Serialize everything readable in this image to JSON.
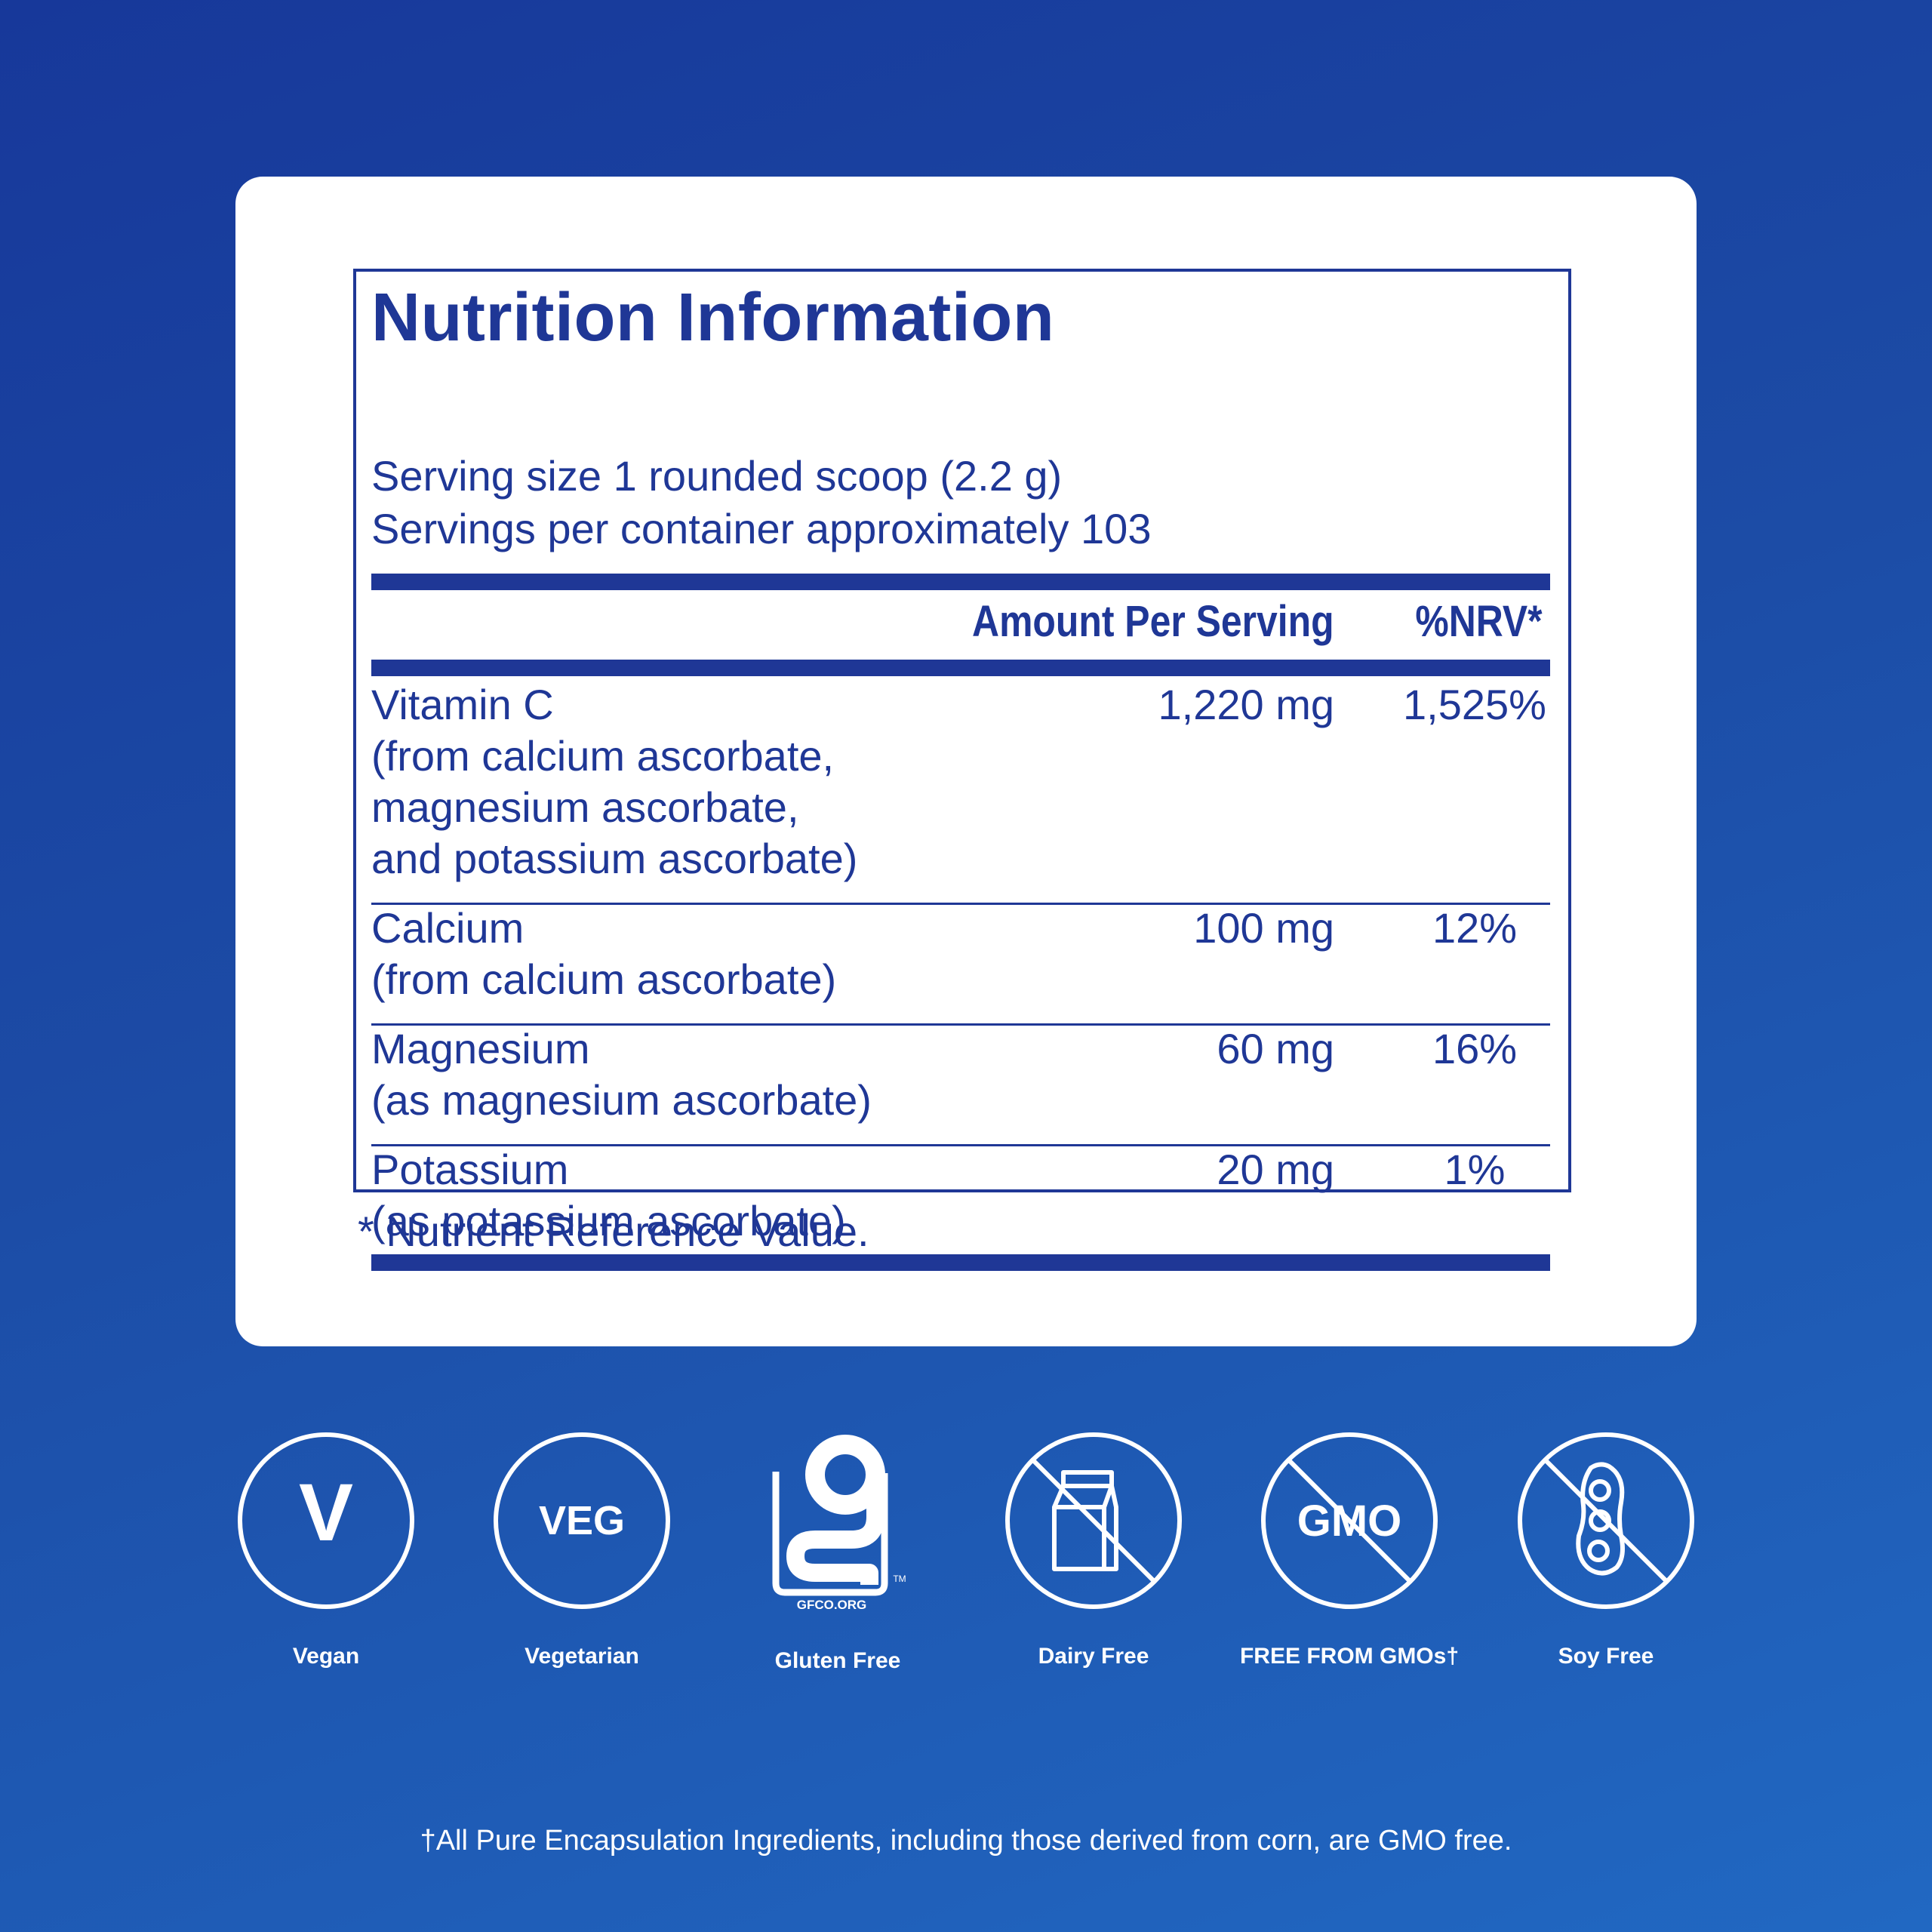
{
  "nutrition": {
    "title": "Nutrition Information",
    "serving_size": "Serving size  1 rounded scoop (2.2 g)",
    "servings_per_container": "Servings per container  approximately 103",
    "col_amount": "Amount Per Serving",
    "col_nrv": "%NRV*",
    "rows": [
      {
        "name": "Vitamin C",
        "detail": [
          "(from calcium ascorbate,",
          "magnesium ascorbate,",
          "and potassium ascorbate)"
        ],
        "amount": "1,220 mg",
        "nrv": "1,525%"
      },
      {
        "name": "Calcium",
        "detail": [
          "(from calcium ascorbate)"
        ],
        "amount": "100 mg",
        "nrv": "12%"
      },
      {
        "name": "Magnesium",
        "detail": [
          "(as magnesium ascorbate)"
        ],
        "amount": "60 mg",
        "nrv": "16%"
      },
      {
        "name": "Potassium",
        "detail": [
          "(as potassium ascorbate)"
        ],
        "amount": "20 mg",
        "nrv": "1%"
      }
    ],
    "footnote": "* Nutrient Reference Value."
  },
  "badges": [
    {
      "label": "Vegan",
      "icon": "vegan-v-icon",
      "glyph": "V"
    },
    {
      "label": "Vegetarian",
      "icon": "veg-icon",
      "glyph": "VEG"
    },
    {
      "label": "Gluten Free",
      "icon": "gfco-gluten-free-icon",
      "glyph": "GFCO.ORG",
      "tm": "TM"
    },
    {
      "label": "Dairy Free",
      "icon": "no-milk-carton-icon"
    },
    {
      "label": "FREE FROM GMOs†",
      "icon": "no-gmo-icon",
      "glyph": "GMO"
    },
    {
      "label": "Soy Free",
      "icon": "no-soybean-icon"
    }
  ],
  "disclaimer": "†All Pure Encapsulation Ingredients, including those derived from corn, are GMO free.",
  "colors": {
    "navy": "#1f3796",
    "background_start": "#17389a",
    "background_end": "#2168c2",
    "white": "#ffffff"
  }
}
